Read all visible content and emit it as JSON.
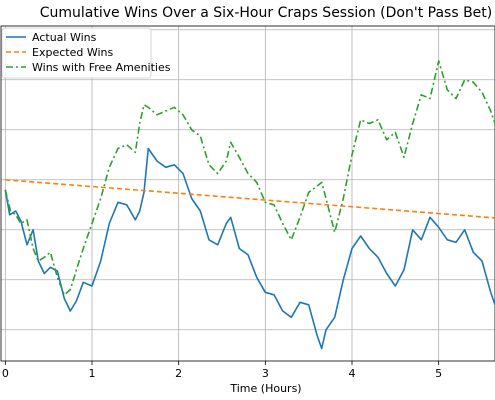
{
  "chart_data": {
    "type": "line",
    "title": "Cumulative Wins Over a Six-Hour Craps Session (Don't Pass Bet)",
    "xlabel": "Time (Hours)",
    "ylabel": "",
    "xlim": [
      -0.05,
      5.65
    ],
    "ylim": [
      -14.5,
      12.3
    ],
    "x_ticks": [
      0,
      1,
      2,
      3,
      4,
      5
    ],
    "y_gridlines": [
      -12,
      -8,
      -4,
      0,
      4,
      8,
      12
    ],
    "grid": true,
    "legend_position": "top-left",
    "series": [
      {
        "name": "Actual Wins",
        "color": "#1f77b4",
        "style": "solid",
        "x": [
          0,
          0.05,
          0.12,
          0.18,
          0.25,
          0.32,
          0.38,
          0.45,
          0.52,
          0.6,
          0.68,
          0.75,
          0.82,
          0.9,
          1.0,
          1.1,
          1.2,
          1.3,
          1.4,
          1.5,
          1.55,
          1.6,
          1.65,
          1.75,
          1.85,
          1.95,
          2.05,
          2.15,
          2.25,
          2.35,
          2.45,
          2.55,
          2.6,
          2.7,
          2.8,
          2.9,
          3.0,
          3.1,
          3.2,
          3.3,
          3.4,
          3.5,
          3.6,
          3.65,
          3.7,
          3.8,
          3.9,
          4.0,
          4.1,
          4.2,
          4.3,
          4.4,
          4.5,
          4.6,
          4.7,
          4.8,
          4.9,
          5.0,
          5.1,
          5.2,
          5.3,
          5.4,
          5.5,
          5.6,
          5.65
        ],
        "y": [
          -0.8,
          -2.8,
          -2.5,
          -3.3,
          -5.2,
          -4,
          -6.5,
          -7.5,
          -7,
          -7.3,
          -9.5,
          -10.5,
          -9.7,
          -8.2,
          -8.5,
          -6.5,
          -3.5,
          -1.8,
          -2,
          -3.2,
          -2.5,
          -1,
          2.5,
          1.5,
          1,
          1.2,
          0.5,
          -1.5,
          -2.5,
          -4.8,
          -5.2,
          -3.5,
          -3,
          -5.5,
          -6,
          -7.8,
          -9,
          -9.2,
          -10.5,
          -11,
          -9.8,
          -10,
          -12.5,
          -13.5,
          -12,
          -11,
          -8,
          -5.5,
          -4.5,
          -5.5,
          -6.2,
          -7.5,
          -8.5,
          -7.2,
          -4,
          -4.8,
          -3,
          -3.8,
          -4.8,
          -5,
          -4,
          -5.8,
          -6.5,
          -9,
          -10
        ]
      },
      {
        "name": "Expected Wins",
        "color": "#ff7f0e",
        "style": "dashed",
        "x": [
          0,
          5.65
        ],
        "y": [
          0,
          -3.05
        ]
      },
      {
        "name": "Wins with Free Amenities",
        "color": "#2ca02c",
        "style": "dashdot",
        "x": [
          0,
          0.06,
          0.12,
          0.18,
          0.25,
          0.32,
          0.38,
          0.45,
          0.52,
          0.6,
          0.68,
          0.75,
          0.82,
          0.9,
          1.0,
          1.1,
          1.2,
          1.3,
          1.4,
          1.5,
          1.55,
          1.6,
          1.65,
          1.75,
          1.85,
          1.95,
          2.05,
          2.15,
          2.25,
          2.35,
          2.45,
          2.55,
          2.6,
          2.7,
          2.8,
          2.9,
          3.0,
          3.1,
          3.2,
          3.3,
          3.4,
          3.5,
          3.6,
          3.65,
          3.7,
          3.8,
          3.9,
          4.0,
          4.1,
          4.2,
          4.3,
          4.4,
          4.5,
          4.6,
          4.7,
          4.8,
          4.9,
          5.0,
          5.1,
          5.2,
          5.3,
          5.4,
          5.5,
          5.6,
          5.65
        ],
        "y": [
          -0.8,
          -2.5,
          -2.8,
          -3.5,
          -3.2,
          -5.5,
          -6.5,
          -6.2,
          -5.8,
          -7.8,
          -9.2,
          -8.8,
          -7.2,
          -5.5,
          -3.5,
          -1.5,
          1,
          2.5,
          2.8,
          2.2,
          4.5,
          6,
          5.8,
          5.2,
          5.5,
          5.8,
          5.2,
          4,
          3.5,
          1.2,
          0.5,
          1.5,
          3,
          1.8,
          0.5,
          -0.2,
          -1.8,
          -2,
          -3.5,
          -4.8,
          -3,
          -1,
          -0.5,
          -0.2,
          -1.5,
          -4.2,
          -1.5,
          2,
          4.8,
          4.5,
          4.8,
          3.2,
          3.8,
          1.8,
          4.5,
          6.8,
          6.5,
          9.5,
          7.2,
          6.5,
          8,
          7.8,
          7,
          5.5,
          4.5
        ]
      }
    ]
  }
}
